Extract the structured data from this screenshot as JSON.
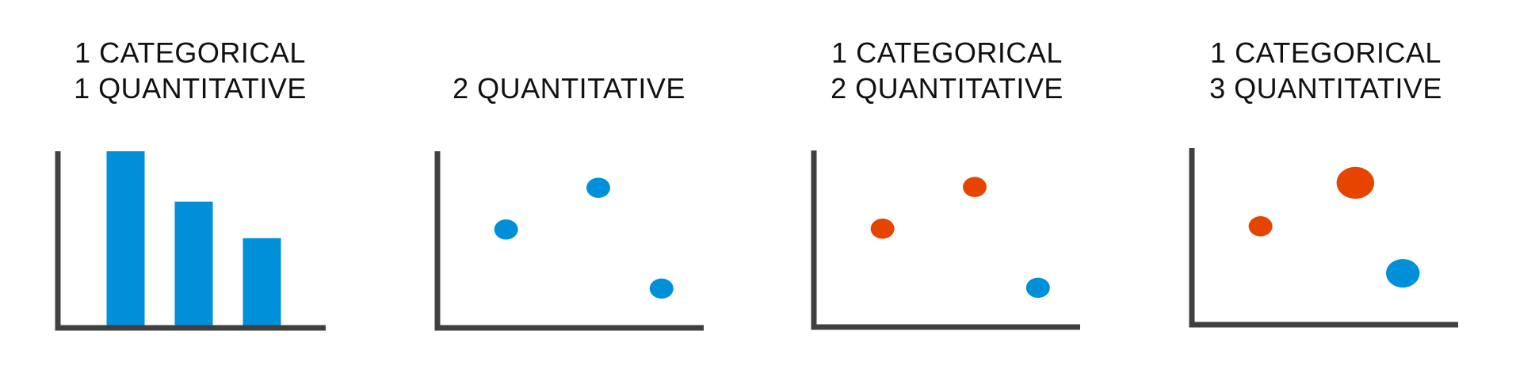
{
  "colors": {
    "axis": "#404040",
    "blue": "#0090d9",
    "orange": "#e54500"
  },
  "chart_data": [
    {
      "type": "bar",
      "title_lines": [
        "1 CATEGORICAL",
        "1 QUANTITATIVE"
      ],
      "xlabel": "",
      "ylabel": "",
      "categories": [
        "",
        "",
        ""
      ],
      "values": [
        100,
        71,
        50
      ],
      "ylim": [
        0,
        100
      ],
      "grid": false,
      "bar_color": "blue"
    },
    {
      "type": "scatter",
      "title_lines": [
        "",
        "2 QUANTITATIVE"
      ],
      "xlabel": "",
      "ylabel": "",
      "xlim": [
        0,
        100
      ],
      "ylim": [
        0,
        100
      ],
      "grid": false,
      "points": [
        {
          "x": 25,
          "y": 55,
          "size": 1,
          "color": "blue"
        },
        {
          "x": 60,
          "y": 79,
          "size": 1,
          "color": "blue"
        },
        {
          "x": 84,
          "y": 21,
          "size": 1,
          "color": "blue"
        }
      ]
    },
    {
      "type": "scatter",
      "title_lines": [
        "1 CATEGORICAL",
        "2 QUANTITATIVE"
      ],
      "xlabel": "",
      "ylabel": "",
      "xlim": [
        0,
        100
      ],
      "ylim": [
        0,
        100
      ],
      "grid": false,
      "points": [
        {
          "x": 25,
          "y": 55,
          "size": 1,
          "color": "orange"
        },
        {
          "x": 60,
          "y": 79,
          "size": 1,
          "color": "orange"
        },
        {
          "x": 84,
          "y": 21,
          "size": 1,
          "color": "blue"
        }
      ]
    },
    {
      "type": "scatter",
      "title_lines": [
        "1 CATEGORICAL",
        "3 QUANTITATIVE"
      ],
      "xlabel": "",
      "ylabel": "",
      "xlim": [
        0,
        100
      ],
      "ylim": [
        0,
        100
      ],
      "grid": false,
      "points": [
        {
          "x": 25,
          "y": 55,
          "size": 1,
          "color": "orange"
        },
        {
          "x": 61,
          "y": 80,
          "size": 2.5,
          "color": "orange"
        },
        {
          "x": 79,
          "y": 28,
          "size": 2,
          "color": "blue"
        }
      ]
    }
  ]
}
